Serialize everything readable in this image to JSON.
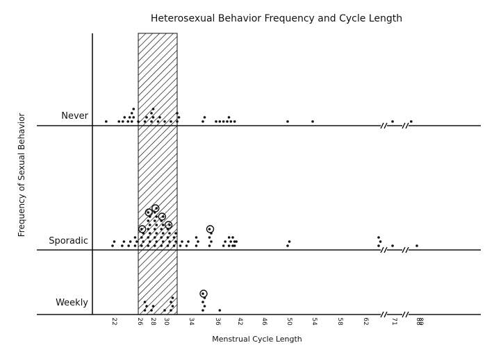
{
  "chart_data": {
    "type": "scatter",
    "title": "Heterosexual Behavior Frequency and Cycle Length",
    "xlabel": "Menstrual Cycle Length",
    "ylabel": "Frequency of Sexual Behavior",
    "categories": [
      "Never",
      "Sporadic",
      "Weekly"
    ],
    "x_ticks": [
      "22",
      "26",
      "28",
      "30",
      "34",
      "36",
      "42",
      "46",
      "50",
      "54",
      "58",
      "62",
      "71",
      "88",
      "89"
    ],
    "x_tick_values": [
      22,
      26,
      28,
      30,
      34,
      36,
      42,
      46,
      50,
      54,
      58,
      62,
      71,
      88,
      89
    ],
    "shaded_range": [
      26,
      32
    ],
    "axis_breaks": [
      69,
      77
    ],
    "series": [
      {
        "category": "Never",
        "points": [
          {
            "x": 21,
            "n": 1
          },
          {
            "x": 23,
            "n": 1
          },
          {
            "x": 23.6,
            "n": 2
          },
          {
            "x": 24.4,
            "n": 2
          },
          {
            "x": 25,
            "n": 4
          },
          {
            "x": 26,
            "n": 1
          },
          {
            "x": 27,
            "n": 2
          },
          {
            "x": 28,
            "n": 4
          },
          {
            "x": 29,
            "n": 2
          },
          {
            "x": 30,
            "n": 1
          },
          {
            "x": 31,
            "n": 1
          },
          {
            "x": 32,
            "n": 3
          },
          {
            "x": 35,
            "n": 2
          },
          {
            "x": 36,
            "n": 1
          },
          {
            "x": 37,
            "n": 1
          },
          {
            "x": 38,
            "n": 1
          },
          {
            "x": 39,
            "n": 2
          },
          {
            "x": 40,
            "n": 1
          },
          {
            "x": 41,
            "n": 1
          },
          {
            "x": 50,
            "n": 1
          },
          {
            "x": 54,
            "n": 1
          },
          {
            "x": 71,
            "n": 1
          },
          {
            "x": 79,
            "n": 1
          }
        ]
      },
      {
        "category": "Sporadic",
        "points": [
          {
            "x": 22,
            "n": 2
          },
          {
            "x": 23.5,
            "n": 2
          },
          {
            "x": 24.5,
            "n": 2
          },
          {
            "x": 25.5,
            "n": 3
          },
          {
            "x": 26.5,
            "n": 5
          },
          {
            "x": 27.5,
            "n": 9
          },
          {
            "x": 28.5,
            "n": 10
          },
          {
            "x": 29.5,
            "n": 8
          },
          {
            "x": 30.5,
            "n": 6
          },
          {
            "x": 31.5,
            "n": 4
          },
          {
            "x": 32.5,
            "n": 2
          },
          {
            "x": 33.5,
            "n": 2
          },
          {
            "x": 34.5,
            "n": 3
          },
          {
            "x": 35.5,
            "n": 5
          },
          {
            "x": 38,
            "n": 2
          },
          {
            "x": 39.5,
            "n": 3
          },
          {
            "x": 40.5,
            "n": 3
          },
          {
            "x": 41,
            "n": 2
          },
          {
            "x": 50,
            "n": 2
          },
          {
            "x": 67,
            "n": 3
          },
          {
            "x": 71,
            "n": 1
          },
          {
            "x": 88,
            "n": 1
          }
        ]
      },
      {
        "category": "Weekly",
        "points": [
          {
            "x": 27,
            "n": 3
          },
          {
            "x": 28,
            "n": 2
          },
          {
            "x": 30,
            "n": 1
          },
          {
            "x": 31,
            "n": 4
          },
          {
            "x": 35,
            "n": 5
          },
          {
            "x": 37,
            "n": 1
          }
        ]
      }
    ],
    "grid": false
  },
  "colors": {
    "ink": "#111111",
    "background": "#ffffff"
  }
}
